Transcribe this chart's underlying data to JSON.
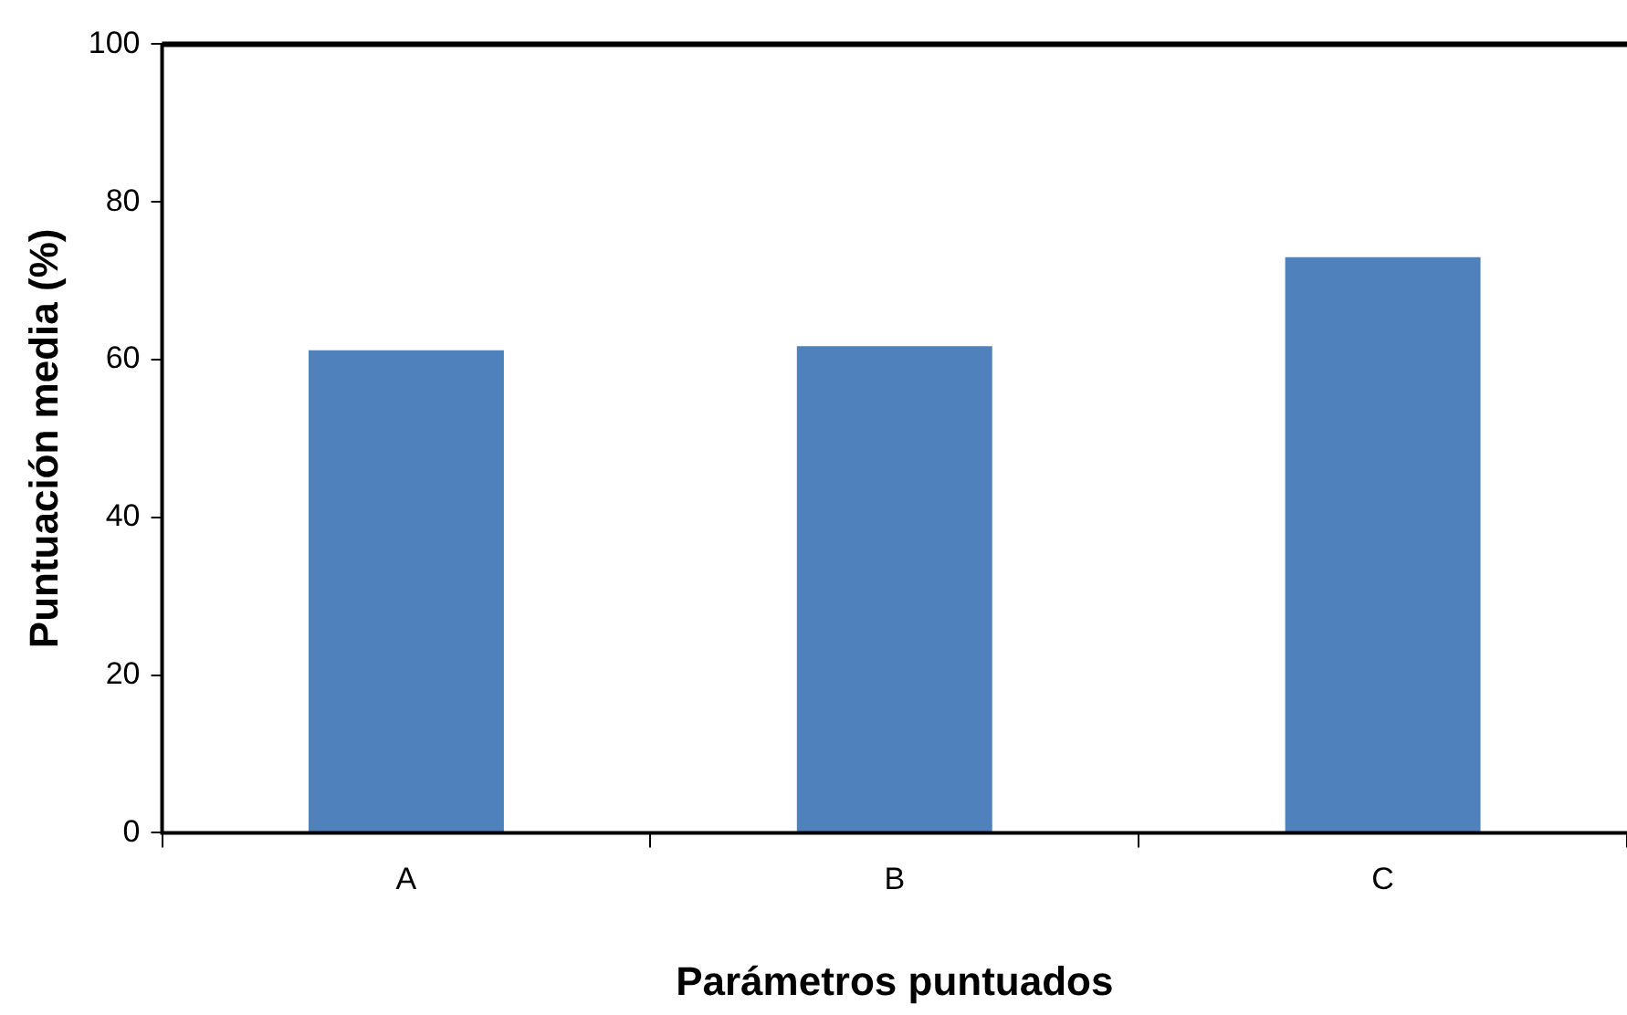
{
  "chart_data": {
    "type": "bar",
    "xlabel": "Parámetros puntuados",
    "ylabel": "Puntuación media (%)",
    "categories": [
      "A",
      "B",
      "C"
    ],
    "values": [
      61.2,
      61.7,
      73
    ],
    "color": "#4f81bd",
    "ylim": [
      0,
      100
    ],
    "yticks": [
      0,
      20,
      40,
      60,
      80,
      100
    ],
    "grid": false,
    "legend": false
  }
}
